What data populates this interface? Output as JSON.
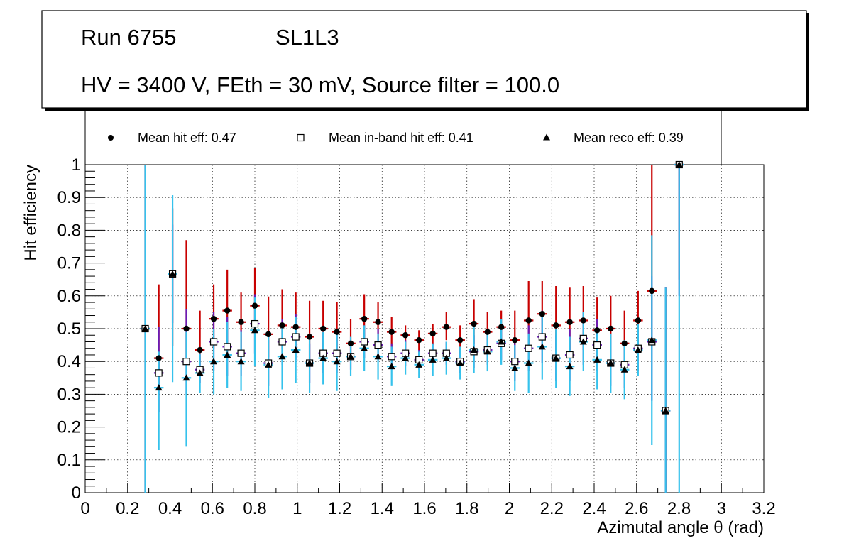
{
  "info_box": {
    "run": "Run 6755",
    "layer": "SL1L3",
    "settings": "HV = 3400 V, FEth = 30 mV, Source filter = 100.0"
  },
  "legend": {
    "hit": "Mean hit  eff: 0.47",
    "inband": "Mean in-band hit eff: 0.41",
    "reco": "Mean reco eff: 0.39"
  },
  "colors": {
    "hit_err": "#c80000",
    "inband_err": "#6a1bb5",
    "reco_err": "#35c2ec",
    "marker": "#000000"
  },
  "chart_data": {
    "type": "scatter",
    "xlabel": "Azimutal angle θ (rad)",
    "ylabel": "Hit efficiency",
    "xlim": [
      0,
      3.2
    ],
    "ylim": [
      0,
      1
    ],
    "x_ticks": [
      "0",
      "0.2",
      "0.4",
      "0.6",
      "0.8",
      "1",
      "1.2",
      "1.4",
      "1.6",
      "1.8",
      "2",
      "2.2",
      "2.4",
      "2.6",
      "2.8",
      "3",
      "3.2"
    ],
    "y_ticks": [
      "0",
      "0.1",
      "0.2",
      "0.3",
      "0.4",
      "0.5",
      "0.6",
      "0.7",
      "0.8",
      "0.9",
      "1"
    ],
    "grid": true,
    "x_half_width": 0.0225,
    "x": [
      0.283,
      0.347,
      0.412,
      0.477,
      0.541,
      0.606,
      0.67,
      0.735,
      0.8,
      0.864,
      0.929,
      0.993,
      1.058,
      1.122,
      1.187,
      1.252,
      1.316,
      1.381,
      1.445,
      1.51,
      1.574,
      1.639,
      1.703,
      1.768,
      1.833,
      1.897,
      1.962,
      2.026,
      2.091,
      2.155,
      2.22,
      2.285,
      2.349,
      2.414,
      2.478,
      2.543,
      2.607,
      2.672,
      2.737,
      2.801
    ],
    "series": [
      {
        "name": "Mean hit eff",
        "marker": "circle",
        "values": [
          0.5,
          0.41,
          0.667,
          0.5,
          0.435,
          0.53,
          0.555,
          0.52,
          0.57,
          0.483,
          0.51,
          0.505,
          0.475,
          0.5,
          0.49,
          0.455,
          0.53,
          0.52,
          0.49,
          0.48,
          0.465,
          0.485,
          0.505,
          0.465,
          0.515,
          0.49,
          0.505,
          0.465,
          0.525,
          0.545,
          0.51,
          0.52,
          0.525,
          0.495,
          0.5,
          0.455,
          0.525,
          0.615,
          0.25,
          1.0
        ],
        "err_low": [
          0.5,
          0.09,
          0.22,
          0.1,
          0.05,
          0.09,
          0.1,
          0.08,
          0.085,
          0.07,
          0.07,
          0.075,
          0.07,
          0.07,
          0.07,
          0.05,
          0.06,
          0.055,
          0.05,
          0.04,
          0.03,
          0.035,
          0.04,
          0.04,
          0.06,
          0.05,
          0.06,
          0.06,
          0.07,
          0.08,
          0.08,
          0.085,
          0.09,
          0.09,
          0.09,
          0.08,
          0.08,
          0.15,
          0.25,
          0.35
        ],
        "err_high": [
          0.5,
          0.225,
          0.2,
          0.27,
          0.12,
          0.105,
          0.125,
          0.09,
          0.115,
          0.115,
          0.11,
          0.105,
          0.11,
          0.085,
          0.09,
          0.075,
          0.075,
          0.06,
          0.045,
          0.03,
          0.03,
          0.03,
          0.045,
          0.045,
          0.075,
          0.06,
          0.05,
          0.09,
          0.12,
          0.1,
          0.12,
          0.105,
          0.105,
          0.1,
          0.1,
          0.1,
          0.09,
          0.385,
          0.375,
          0.0
        ]
      },
      {
        "name": "Mean in-band hit eff",
        "marker": "open-square",
        "values": [
          0.5,
          0.365,
          0.667,
          0.4,
          0.375,
          0.46,
          0.445,
          0.425,
          0.515,
          0.395,
          0.46,
          0.475,
          0.395,
          0.425,
          0.425,
          0.415,
          0.46,
          0.45,
          0.415,
          0.425,
          0.405,
          0.425,
          0.425,
          0.4,
          0.43,
          0.435,
          0.455,
          0.4,
          0.44,
          0.475,
          0.41,
          0.42,
          0.47,
          0.45,
          0.395,
          0.39,
          0.44,
          0.46,
          0.25,
          1.0
        ],
        "err_low": [
          0.5,
          0.12,
          0.15,
          0.1,
          0.04,
          0.09,
          0.09,
          0.07,
          0.09,
          0.07,
          0.07,
          0.07,
          0.06,
          0.06,
          0.06,
          0.04,
          0.05,
          0.05,
          0.04,
          0.04,
          0.03,
          0.03,
          0.035,
          0.035,
          0.05,
          0.045,
          0.05,
          0.06,
          0.07,
          0.08,
          0.07,
          0.08,
          0.08,
          0.08,
          0.07,
          0.07,
          0.07,
          0.18,
          0.25,
          0.4
        ],
        "err_high": [
          0.5,
          0.14,
          0.15,
          0.16,
          0.05,
          0.09,
          0.09,
          0.07,
          0.09,
          0.07,
          0.07,
          0.07,
          0.06,
          0.06,
          0.06,
          0.04,
          0.05,
          0.05,
          0.04,
          0.04,
          0.03,
          0.03,
          0.035,
          0.035,
          0.05,
          0.045,
          0.05,
          0.06,
          0.07,
          0.08,
          0.07,
          0.08,
          0.08,
          0.08,
          0.07,
          0.07,
          0.07,
          0.2,
          0.375,
          0.0
        ]
      },
      {
        "name": "Mean reco eff",
        "marker": "triangle",
        "values": [
          0.5,
          0.32,
          0.667,
          0.35,
          0.365,
          0.4,
          0.42,
          0.4,
          0.495,
          0.39,
          0.415,
          0.435,
          0.395,
          0.41,
          0.4,
          0.415,
          0.44,
          0.415,
          0.385,
          0.41,
          0.39,
          0.405,
          0.41,
          0.395,
          0.435,
          0.43,
          0.46,
          0.38,
          0.395,
          0.445,
          0.41,
          0.385,
          0.46,
          0.405,
          0.395,
          0.375,
          0.435,
          0.465,
          0.25,
          1.0
        ],
        "err_low": [
          0.5,
          0.19,
          0.33,
          0.21,
          0.06,
          0.1,
          0.1,
          0.09,
          0.11,
          0.1,
          0.1,
          0.1,
          0.09,
          0.08,
          0.09,
          0.06,
          0.07,
          0.07,
          0.06,
          0.05,
          0.04,
          0.05,
          0.05,
          0.05,
          0.07,
          0.06,
          0.07,
          0.07,
          0.09,
          0.1,
          0.09,
          0.09,
          0.09,
          0.09,
          0.09,
          0.09,
          0.08,
          0.32,
          0.25,
          1.0
        ],
        "err_high": [
          0.5,
          0.11,
          0.24,
          0.14,
          0.06,
          0.1,
          0.1,
          0.09,
          0.1,
          0.1,
          0.1,
          0.1,
          0.09,
          0.08,
          0.09,
          0.06,
          0.07,
          0.07,
          0.06,
          0.05,
          0.04,
          0.05,
          0.05,
          0.05,
          0.07,
          0.06,
          0.07,
          0.07,
          0.09,
          0.1,
          0.09,
          0.09,
          0.09,
          0.09,
          0.09,
          0.09,
          0.08,
          0.32,
          0.375,
          0.0
        ]
      }
    ]
  }
}
